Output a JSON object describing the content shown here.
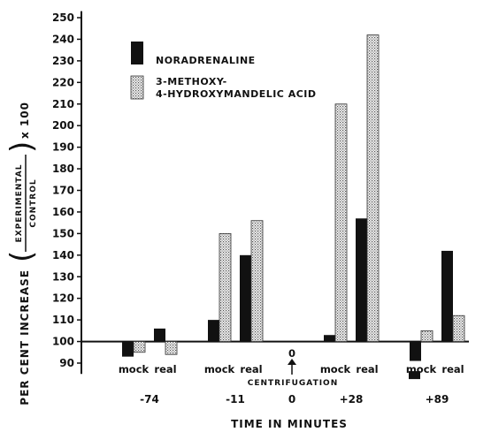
{
  "chart_data": {
    "type": "bar",
    "ylabel_prefix": "PER CENT INCREASE",
    "ylabel_fraction_numerator": "EXPERIMENTAL",
    "ylabel_fraction_denominator": "CONTROL",
    "ylabel_suffix": "x 100",
    "xlabel": "TIME IN MINUTES",
    "yticks": [
      90,
      100,
      110,
      120,
      130,
      140,
      150,
      160,
      170,
      180,
      190,
      200,
      210,
      220,
      230,
      240,
      250
    ],
    "baseline": 100,
    "ylim": [
      85,
      253
    ],
    "series": [
      {
        "name": "NORADRENALINE",
        "color": "#111111",
        "pattern": "solid"
      },
      {
        "name_line1": "3-METHOXY-",
        "name_line2": "4-HYDROXYMANDELIC ACID",
        "color": "#dddddd",
        "pattern": "stippled"
      }
    ],
    "groups": [
      {
        "time": "-74",
        "conditions": [
          {
            "label": "mock",
            "values": [
              93,
              95
            ]
          },
          {
            "label": "real",
            "values": [
              106,
              94
            ]
          }
        ]
      },
      {
        "time": "-11",
        "conditions": [
          {
            "label": "mock",
            "values": [
              110,
              150
            ]
          },
          {
            "label": "real",
            "values": [
              140,
              156
            ]
          }
        ]
      },
      {
        "time": "+28",
        "conditions": [
          {
            "label": "mock",
            "values": [
              103,
              210
            ]
          },
          {
            "label": "real",
            "values": [
              157,
              242
            ]
          }
        ]
      },
      {
        "time": "+89",
        "conditions": [
          {
            "label": "mock",
            "values": [
              91,
              105
            ]
          },
          {
            "label": "real",
            "values": [
              142,
              112
            ]
          }
        ]
      }
    ],
    "mock_89_extra_marker": 83,
    "centrifugation": {
      "time": "0",
      "marker": "0",
      "label": "CENTRIFUGATION"
    }
  }
}
